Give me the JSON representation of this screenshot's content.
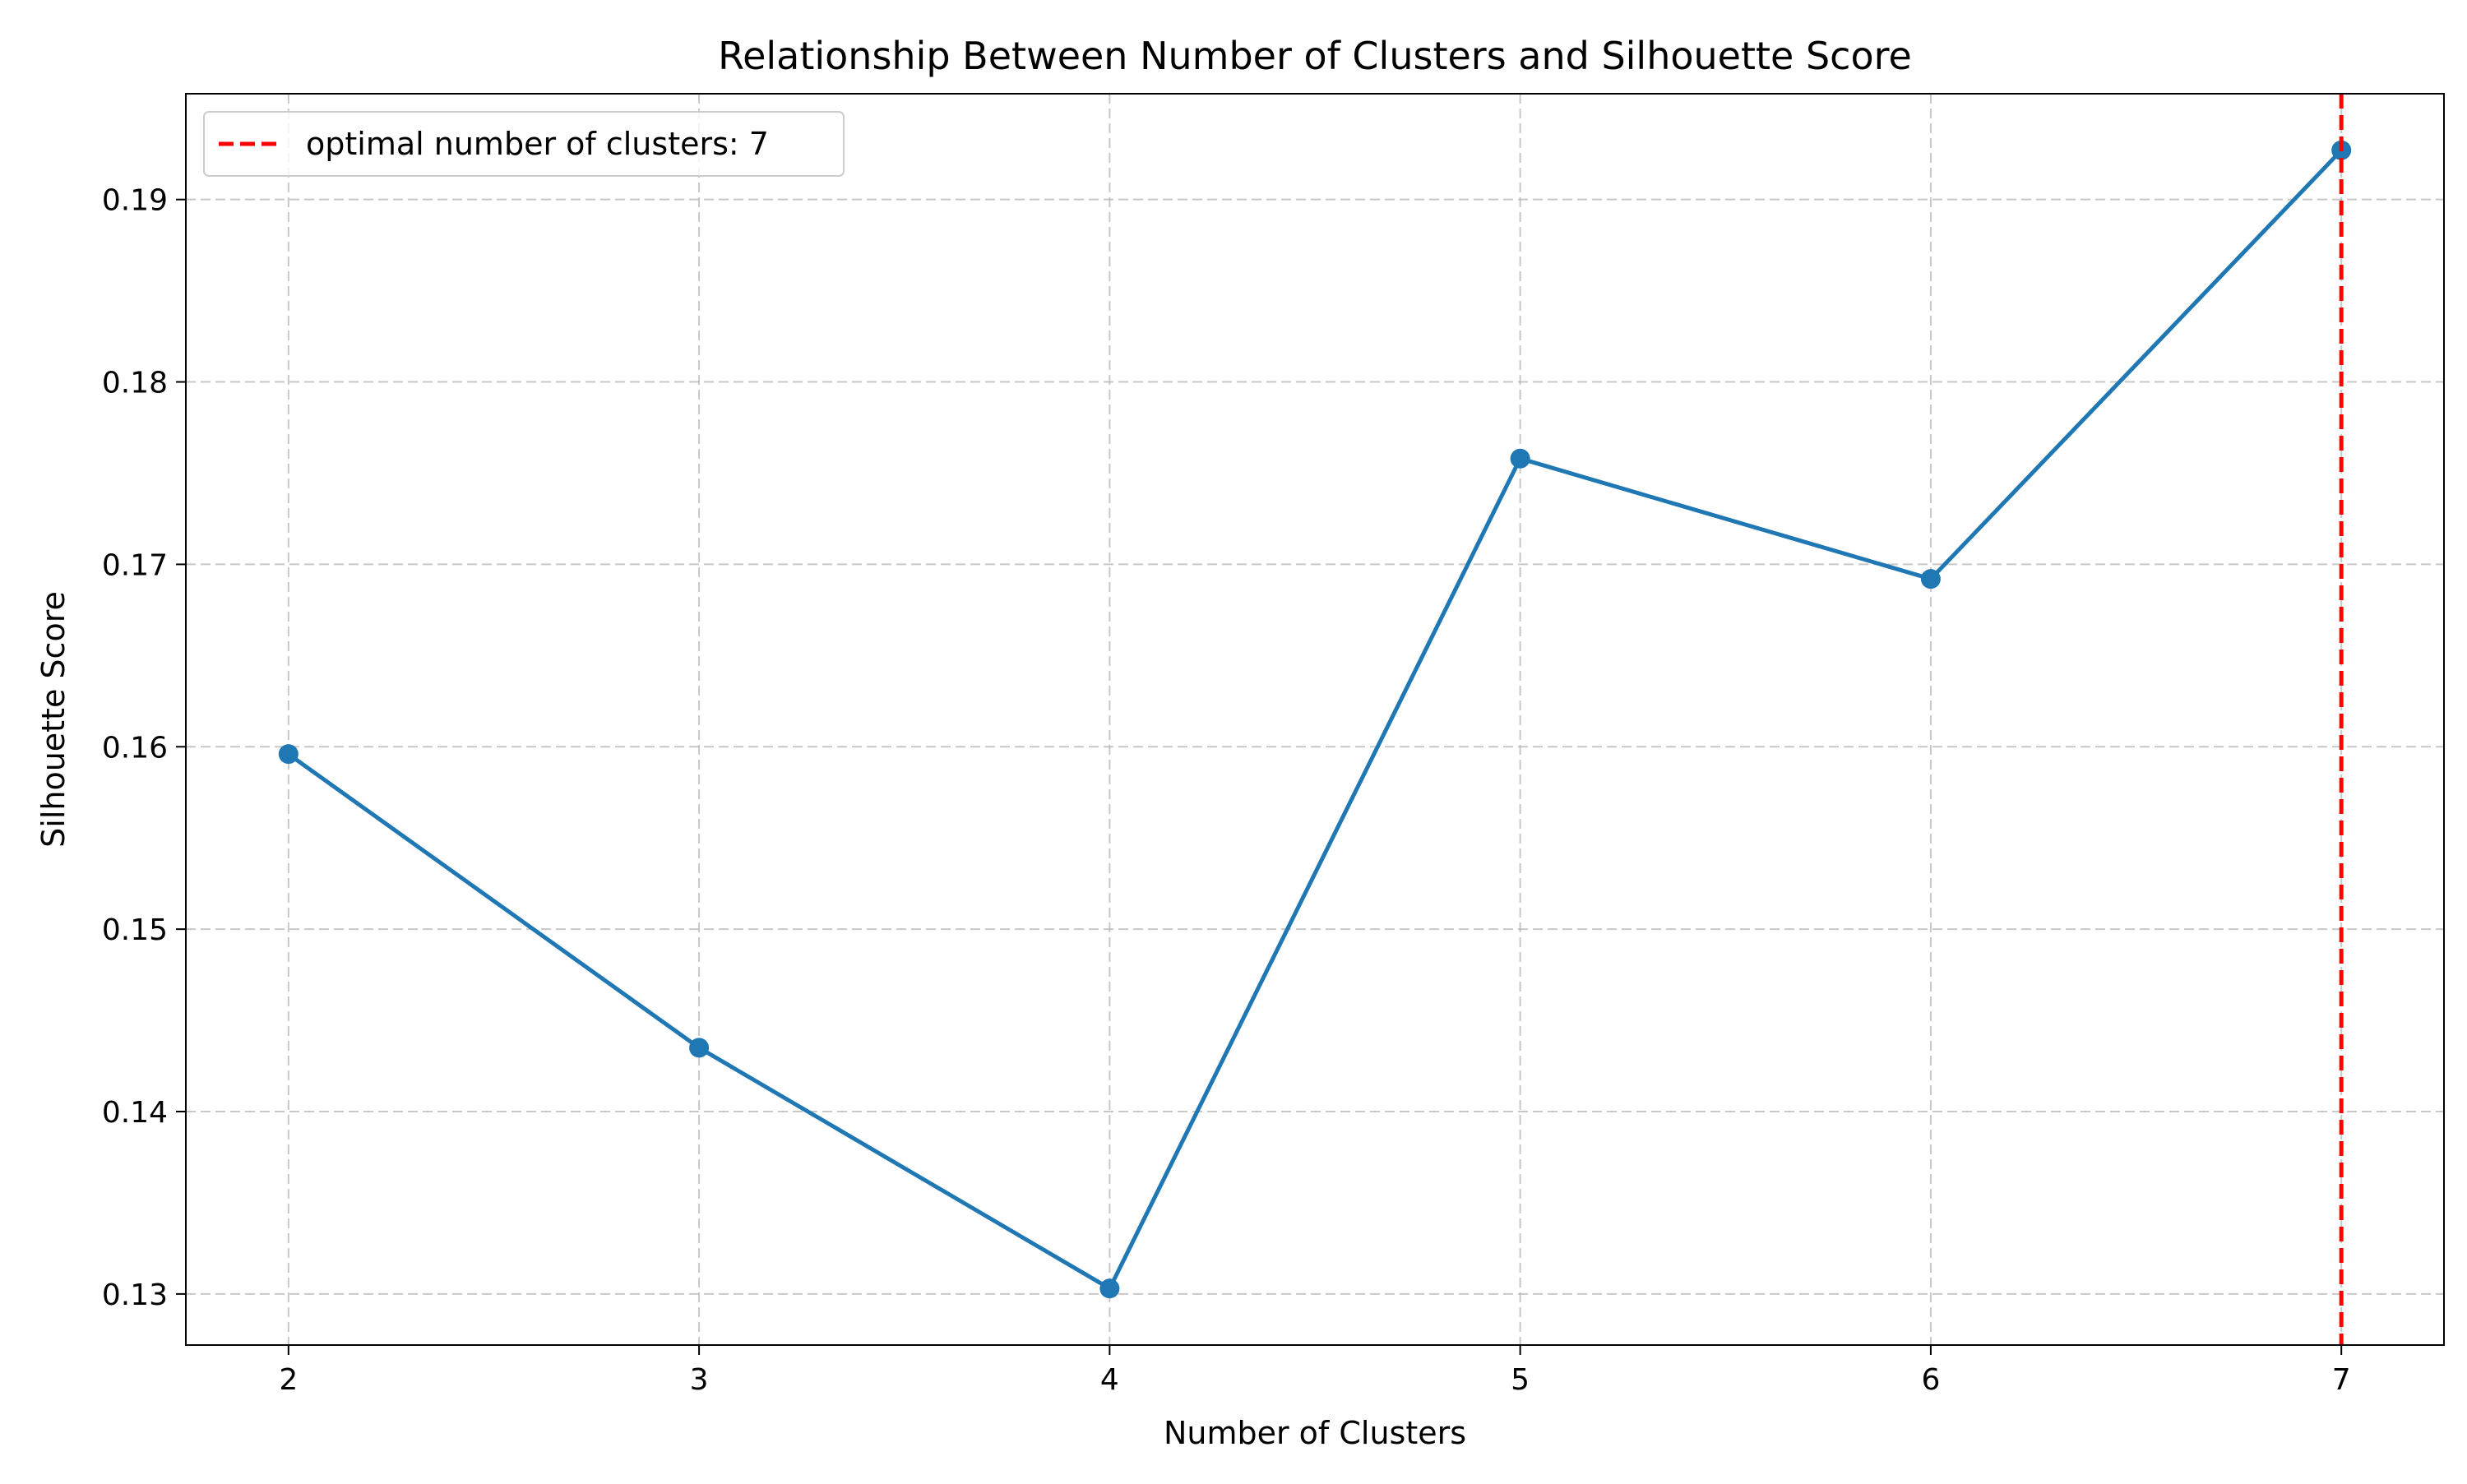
{
  "chart_data": {
    "type": "line",
    "title": "Relationship Between Number of Clusters and Silhouette Score",
    "xlabel": "Number of Clusters",
    "ylabel": "Silhouette Score",
    "x": [
      2,
      3,
      4,
      5,
      6,
      7
    ],
    "series": [
      {
        "values": [
          0.1596,
          0.1435,
          0.1303,
          0.1758,
          0.1692,
          0.1927
        ],
        "color": "#1f77b4",
        "marker": "circle"
      }
    ],
    "xlim": [
      1.75,
      7.25
    ],
    "ylim": [
      0.1272,
      0.1958
    ],
    "xticks": [
      2,
      3,
      4,
      5,
      6,
      7
    ],
    "yticks": [
      0.13,
      0.14,
      0.15,
      0.16,
      0.17,
      0.18,
      0.19
    ],
    "ytick_labels": [
      "0.13",
      "0.14",
      "0.15",
      "0.16",
      "0.17",
      "0.18",
      "0.19"
    ],
    "grid": true,
    "grid_style": "dashed",
    "reference_line": {
      "orientation": "vertical",
      "x": 7,
      "style": "dashed",
      "color": "#ff0000",
      "label": "optimal number of clusters: 7"
    },
    "legend": {
      "position": "top-left",
      "entries": [
        "optimal number of clusters: 7"
      ]
    }
  }
}
